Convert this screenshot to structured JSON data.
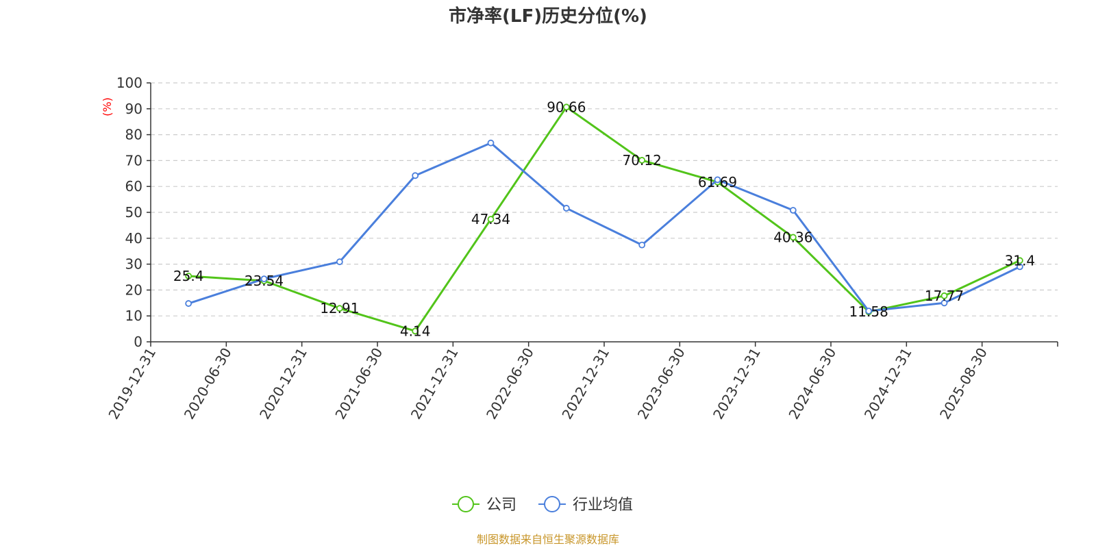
{
  "chart_data": {
    "type": "line",
    "title": "市净率(LF)历史分位(%)",
    "ylabel": "(%)",
    "ylim": [
      0,
      100
    ],
    "yticks": [
      0,
      10,
      20,
      30,
      40,
      50,
      60,
      70,
      80,
      90,
      100
    ],
    "grid": true,
    "legend_position": "bottom",
    "categories": [
      "2019-12-31",
      "2020-06-30",
      "2020-12-31",
      "2021-06-30",
      "2021-12-31",
      "2022-06-30",
      "2022-12-31",
      "2023-06-30",
      "2023-12-31",
      "2024-06-30",
      "2024-12-31",
      "2025-08-30"
    ],
    "series": [
      {
        "name": "公司",
        "color": "#52c41a",
        "values": [
          25.4,
          23.54,
          12.91,
          4.14,
          47.34,
          90.66,
          70.12,
          61.69,
          40.36,
          11.58,
          17.77,
          31.4
        ],
        "labels": [
          "25.4",
          "23.54",
          "12.91",
          "4.14",
          "47.34",
          "90.66",
          "70.12",
          "61.69",
          "40.36",
          "11.58",
          "17.77",
          "31.4"
        ]
      },
      {
        "name": "行业均值",
        "color": "#4a7fdc",
        "values": [
          14.8,
          24.3,
          30.9,
          64.2,
          76.8,
          51.6,
          37.4,
          62.6,
          50.8,
          11.9,
          15.0,
          29.0
        ]
      }
    ]
  },
  "source": "制图数据来自恒生聚源数据库"
}
